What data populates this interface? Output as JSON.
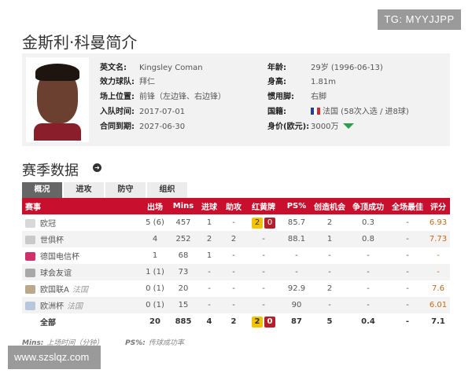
{
  "title": "金斯利·科曼简介",
  "watermark_top": "TG: MYYJJPP",
  "watermark_bottom": "www.szslqz.com",
  "profile": {
    "left": [
      {
        "label": "英文名:",
        "value": "Kingsley Coman"
      },
      {
        "label": "效力球队:",
        "value": "拜仁"
      },
      {
        "label": "场上位置:",
        "value": "前锋（左边锋、右边锋）"
      },
      {
        "label": "入队时间:",
        "value": "2017-07-01"
      },
      {
        "label": "合同到期:",
        "value": "2027-06-30"
      }
    ],
    "right": [
      {
        "label": "年龄:",
        "value": "29岁 (1996-06-13)"
      },
      {
        "label": "身高:",
        "value": "1.81m"
      },
      {
        "label": "惯用脚:",
        "value": "右脚"
      },
      {
        "label": "国籍:",
        "value": "法国 (58次入选 / 进8球)",
        "icon": "france-flag-icon"
      },
      {
        "label": "身价(欧元):",
        "value": "3000万",
        "icon": "trend-down-icon"
      }
    ]
  },
  "season": {
    "heading": "赛季数据",
    "tabs": [
      "概况",
      "进攻",
      "防守",
      "组织"
    ],
    "active_tab": "概况",
    "headers": [
      "赛事",
      "出场",
      "Mins",
      "进球",
      "助攻",
      "红黄牌",
      "PS%",
      "创造机会",
      "争顶成功",
      "全场最佳",
      "评分"
    ],
    "rows": [
      {
        "comp": "欧冠",
        "sub": "",
        "apps": "5 (6)",
        "mins": "457",
        "goals": "1",
        "assists": "-",
        "yellow": "2",
        "red": "0",
        "ps": "85.7",
        "chances": "2",
        "aerial": "0.3",
        "motm": "-",
        "rating": "6.93"
      },
      {
        "comp": "世俱杯",
        "sub": "",
        "apps": "4",
        "mins": "252",
        "goals": "2",
        "assists": "2",
        "cards": "-",
        "ps": "88.1",
        "chances": "1",
        "aerial": "0.8",
        "motm": "-",
        "rating": "7.73"
      },
      {
        "comp": "德国电信杯",
        "sub": "",
        "apps": "1",
        "mins": "68",
        "goals": "1",
        "assists": "-",
        "cards": "-",
        "ps": "-",
        "chances": "-",
        "aerial": "-",
        "motm": "-",
        "rating": "-"
      },
      {
        "comp": "球会友谊",
        "sub": "",
        "apps": "1 (1)",
        "mins": "73",
        "goals": "-",
        "assists": "-",
        "cards": "-",
        "ps": "-",
        "chances": "-",
        "aerial": "-",
        "motm": "-",
        "rating": "-"
      },
      {
        "comp": "欧国联A",
        "sub": "法国",
        "apps": "0 (1)",
        "mins": "20",
        "goals": "-",
        "assists": "-",
        "cards": "-",
        "ps": "92.9",
        "chances": "2",
        "aerial": "-",
        "motm": "-",
        "rating": "7.6"
      },
      {
        "comp": "欧洲杯",
        "sub": "法国",
        "apps": "0 (1)",
        "mins": "15",
        "goals": "-",
        "assists": "-",
        "cards": "-",
        "ps": "90",
        "chances": "-",
        "aerial": "-",
        "motm": "-",
        "rating": "6.01"
      }
    ],
    "total": {
      "comp": "全部",
      "apps": "20",
      "mins": "885",
      "goals": "4",
      "assists": "2",
      "yellow": "2",
      "red": "0",
      "ps": "87",
      "chances": "5",
      "aerial": "0.4",
      "motm": "-",
      "rating": "7.1"
    },
    "footnote": [
      {
        "key": "Mins:",
        "text": "上场时间（分钟）"
      },
      {
        "key": "PS%:",
        "text": "传球成功率"
      }
    ]
  },
  "colors": {
    "header": "#c8102e",
    "yellow_card": "#f3c300",
    "red_card": "#b3202a",
    "rating": "#c26a1a"
  }
}
